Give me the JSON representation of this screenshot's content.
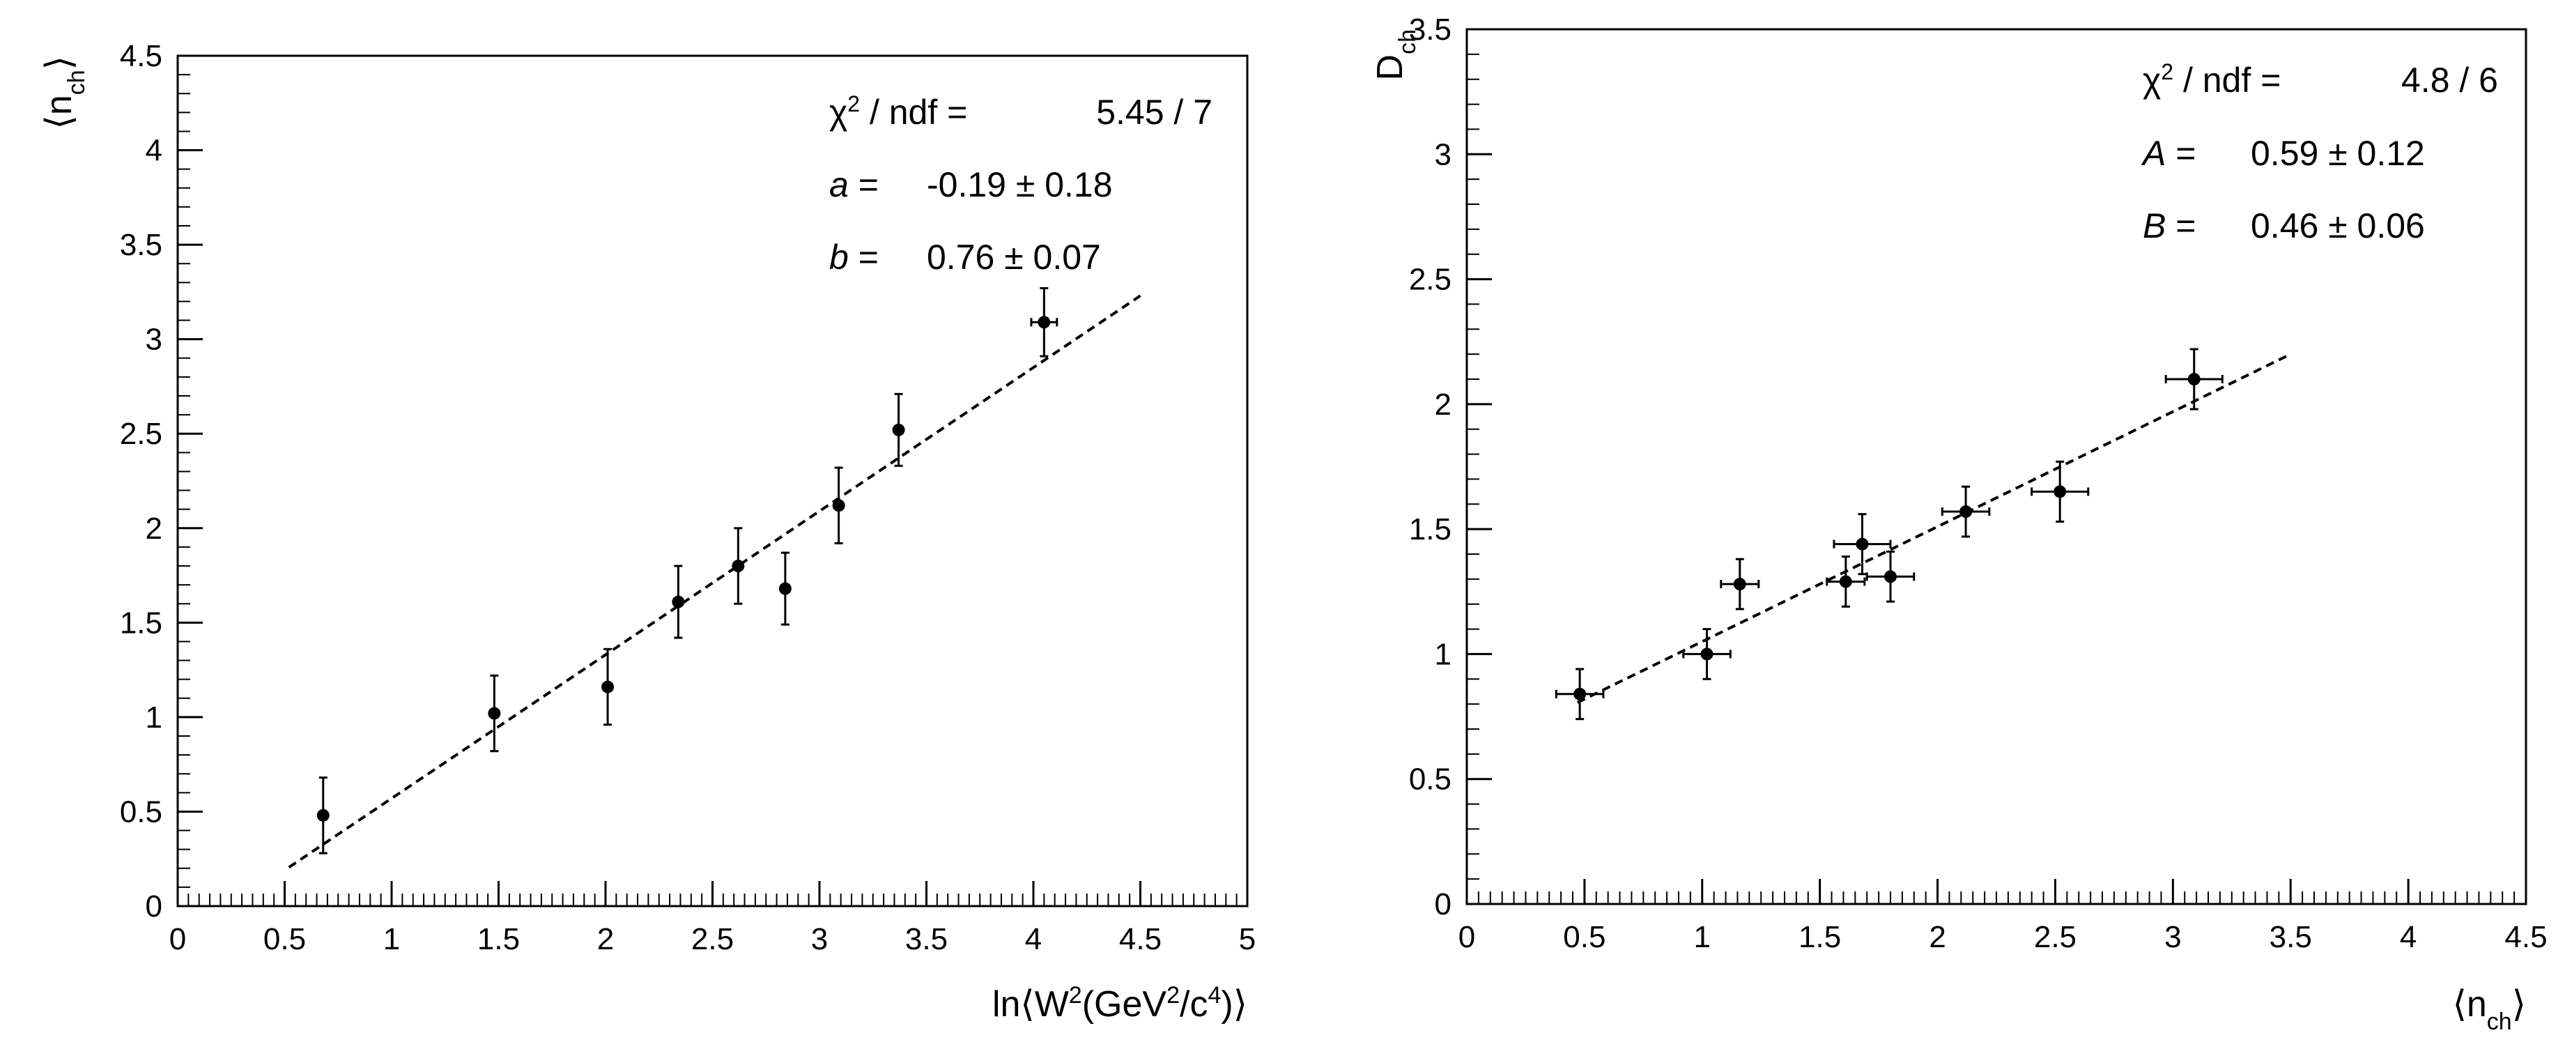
{
  "chart_data": [
    {
      "type": "scatter",
      "xlabel": "ln⟨W²(GeV²/c⁴)⟩",
      "ylabel": "⟨nch⟩",
      "xlim": [
        0,
        5
      ],
      "ylim": [
        0,
        4.5
      ],
      "xticks": [
        "0",
        "0.5",
        "1",
        "1.5",
        "2",
        "2.5",
        "3",
        "3.5",
        "4",
        "4.5",
        "5"
      ],
      "yticks": [
        "0",
        "0.5",
        "1",
        "1.5",
        "2",
        "2.5",
        "3",
        "3.5",
        "4",
        "4.5"
      ],
      "points": [
        {
          "x": 0.68,
          "y": 0.48,
          "xerr": 0.0,
          "yerr": 0.2
        },
        {
          "x": 1.48,
          "y": 1.02,
          "xerr": 0.0,
          "yerr": 0.2
        },
        {
          "x": 2.01,
          "y": 1.16,
          "xerr": 0.0,
          "yerr": 0.2
        },
        {
          "x": 2.34,
          "y": 1.61,
          "xerr": 0.0,
          "yerr": 0.19
        },
        {
          "x": 2.62,
          "y": 1.8,
          "xerr": 0.0,
          "yerr": 0.2
        },
        {
          "x": 2.84,
          "y": 1.68,
          "xerr": 0.0,
          "yerr": 0.19
        },
        {
          "x": 3.09,
          "y": 2.12,
          "xerr": 0.0,
          "yerr": 0.2
        },
        {
          "x": 3.37,
          "y": 2.52,
          "xerr": 0.0,
          "yerr": 0.19
        },
        {
          "x": 4.05,
          "y": 3.09,
          "xerr": 0.06,
          "yerr": 0.18
        }
      ],
      "fit": {
        "x_start": 0.52,
        "x_end": 4.5,
        "intercept": -0.19,
        "slope": 0.76
      },
      "stats": [
        {
          "label": "χ² / ndf =",
          "value": "5.45 / 7"
        },
        {
          "label": "a =",
          "value": "-0.19 ± 0.18"
        },
        {
          "label": "b =",
          "value": "0.76 ± 0.07"
        }
      ]
    },
    {
      "type": "scatter",
      "xlabel": "⟨nch⟩",
      "ylabel": "Dch",
      "xlim": [
        0,
        4.5
      ],
      "ylim": [
        0,
        3.5
      ],
      "xticks": [
        "0",
        "0.5",
        "1",
        "1.5",
        "2",
        "2.5",
        "3",
        "3.5",
        "4",
        "4.5"
      ],
      "yticks": [
        "0",
        "0.5",
        "1",
        "1.5",
        "2",
        "2.5",
        "3",
        "3.5"
      ],
      "points": [
        {
          "x": 0.48,
          "y": 0.84,
          "xerr": 0.1,
          "yerr": 0.1
        },
        {
          "x": 1.02,
          "y": 1.0,
          "xerr": 0.1,
          "yerr": 0.1
        },
        {
          "x": 1.16,
          "y": 1.28,
          "xerr": 0.08,
          "yerr": 0.1
        },
        {
          "x": 1.61,
          "y": 1.29,
          "xerr": 0.08,
          "yerr": 0.1
        },
        {
          "x": 1.68,
          "y": 1.44,
          "xerr": 0.12,
          "yerr": 0.12
        },
        {
          "x": 1.8,
          "y": 1.31,
          "xerr": 0.1,
          "yerr": 0.1
        },
        {
          "x": 2.12,
          "y": 1.57,
          "xerr": 0.1,
          "yerr": 0.1
        },
        {
          "x": 2.52,
          "y": 1.65,
          "xerr": 0.12,
          "yerr": 0.12
        },
        {
          "x": 3.09,
          "y": 2.1,
          "xerr": 0.12,
          "yerr": 0.12
        }
      ],
      "fit": {
        "x_start": 0.47,
        "x_end": 3.5,
        "intercept": 0.59,
        "slope": 0.46
      },
      "stats": [
        {
          "label": "χ² / ndf =",
          "value": "4.8 / 6"
        },
        {
          "label": "A =",
          "value": "0.59 ± 0.12"
        },
        {
          "label": "B =",
          "value": "0.46 ± 0.06"
        }
      ]
    }
  ]
}
